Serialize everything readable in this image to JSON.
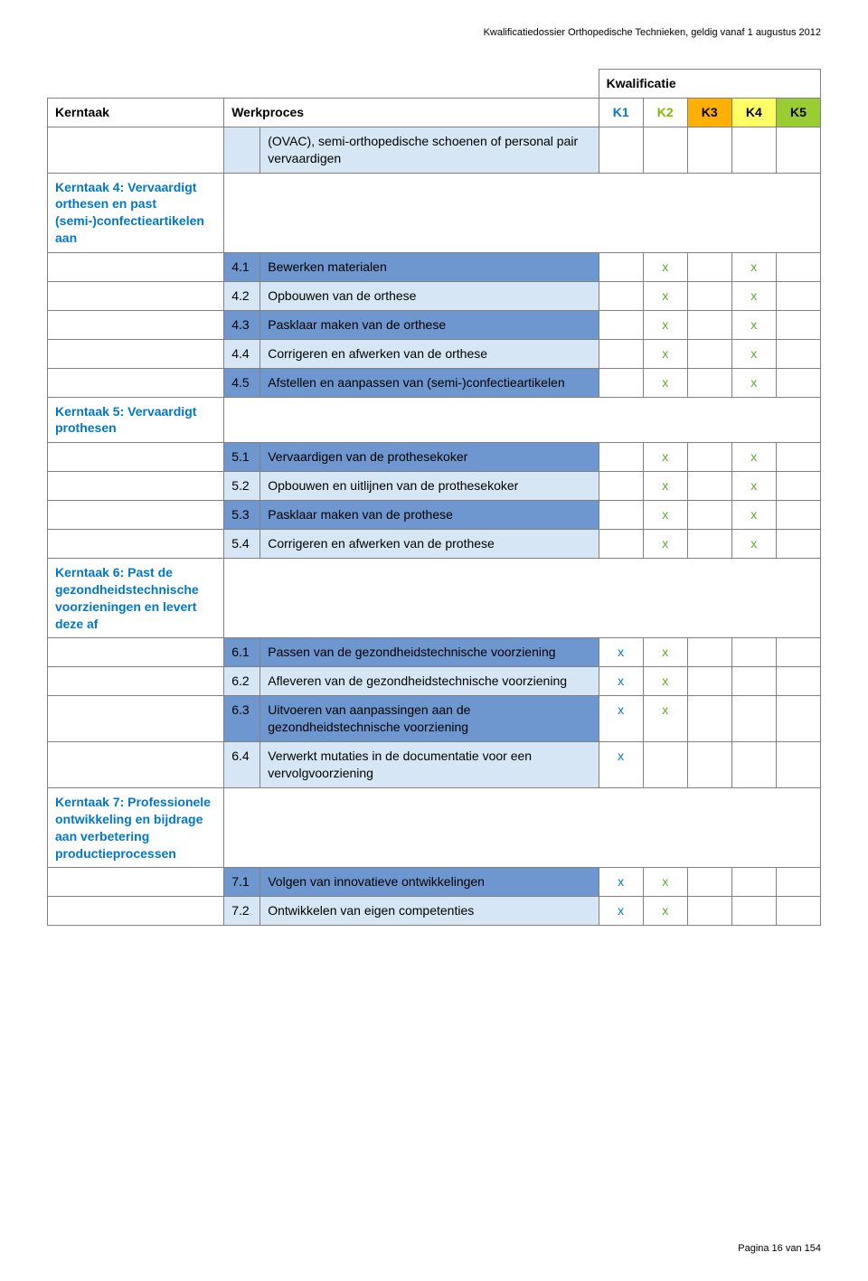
{
  "doc_header": "Kwalificatiedossier Orthopedische Technieken, geldig vanaf 1 augustus 2012",
  "table": {
    "super_header": "Kwalificatie",
    "headers": {
      "kerntaak": "Kerntaak",
      "werkproces": "Werkproces",
      "k1": "K1",
      "k2": "K2",
      "k3": "K3",
      "k4": "K4",
      "k5": "K5"
    },
    "columns": {
      "kerntaak_w": 195,
      "code_w": 40,
      "desc_w": 374,
      "k_w": 49
    },
    "colors": {
      "dark_row": "#6f97cf",
      "light_row": "#d6e6f4",
      "k3_bg": "#ffb000",
      "k4_bg": "#ffff66",
      "k5_bg": "#9acd32",
      "x_blue": "#0077c8",
      "x_green": "#5fa82a",
      "section_color": "#0077c8",
      "border": "#808080"
    },
    "continuation_desc": "(OVAC), semi-orthopedische schoenen of personal pair vervaardigen",
    "sections": [
      {
        "title": "Kerntaak 4: Vervaardigt orthesen en past (semi-)confectieartikelen aan",
        "rows": [
          {
            "code": "4.1",
            "desc": "Bewerken materialen",
            "k": [
              0,
              1,
              0,
              1,
              0
            ],
            "tone": "dark"
          },
          {
            "code": "4.2",
            "desc": "Opbouwen van de orthese",
            "k": [
              0,
              1,
              0,
              1,
              0
            ],
            "tone": "light"
          },
          {
            "code": "4.3",
            "desc": "Pasklaar maken van de orthese",
            "k": [
              0,
              1,
              0,
              1,
              0
            ],
            "tone": "dark"
          },
          {
            "code": "4.4",
            "desc": "Corrigeren en afwerken van de orthese",
            "k": [
              0,
              1,
              0,
              1,
              0
            ],
            "tone": "light"
          },
          {
            "code": "4.5",
            "desc": "Afstellen en aanpassen van (semi-)confectieartikelen",
            "k": [
              0,
              1,
              0,
              1,
              0
            ],
            "tone": "dark"
          }
        ]
      },
      {
        "title": "Kerntaak 5: Vervaardigt prothesen",
        "rows": [
          {
            "code": "5.1",
            "desc": "Vervaardigen van de prothesekoker",
            "k": [
              0,
              1,
              0,
              1,
              0
            ],
            "tone": "dark"
          },
          {
            "code": "5.2",
            "desc": "Opbouwen en uitlijnen van de prothesekoker",
            "k": [
              0,
              1,
              0,
              1,
              0
            ],
            "tone": "light"
          },
          {
            "code": "5.3",
            "desc": "Pasklaar maken van de prothese",
            "k": [
              0,
              1,
              0,
              1,
              0
            ],
            "tone": "dark"
          },
          {
            "code": "5.4",
            "desc": "Corrigeren en afwerken van de prothese",
            "k": [
              0,
              1,
              0,
              1,
              0
            ],
            "tone": "light"
          }
        ]
      },
      {
        "title": "Kerntaak 6: Past de gezondheidstechnische voorzieningen en levert deze af",
        "rows": [
          {
            "code": "6.1",
            "desc": "Passen van de gezondheidstechnische voorziening",
            "k": [
              1,
              1,
              0,
              0,
              0
            ],
            "tone": "dark"
          },
          {
            "code": "6.2",
            "desc": "Afleveren van de gezondheidstechnische voorziening",
            "k": [
              1,
              1,
              0,
              0,
              0
            ],
            "tone": "light"
          },
          {
            "code": "6.3",
            "desc": "Uitvoeren van aanpassingen aan de gezondheidstechnische voorziening",
            "k": [
              1,
              1,
              0,
              0,
              0
            ],
            "tone": "dark"
          },
          {
            "code": "6.4",
            "desc": "Verwerkt mutaties in de documentatie voor een vervolgvoorziening",
            "k": [
              1,
              0,
              0,
              0,
              0
            ],
            "tone": "light"
          }
        ]
      },
      {
        "title": "Kerntaak 7: Professionele ontwikkeling en bijdrage aan verbetering productieprocessen",
        "rows": [
          {
            "code": "7.1",
            "desc": "Volgen van innovatieve ontwikkelingen",
            "k": [
              1,
              1,
              0,
              0,
              0
            ],
            "tone": "dark"
          },
          {
            "code": "7.2",
            "desc": "Ontwikkelen van eigen competenties",
            "k": [
              1,
              1,
              0,
              0,
              0
            ],
            "tone": "light"
          }
        ]
      }
    ]
  },
  "x_glyph": "x",
  "footer": "Pagina 16 van 154"
}
